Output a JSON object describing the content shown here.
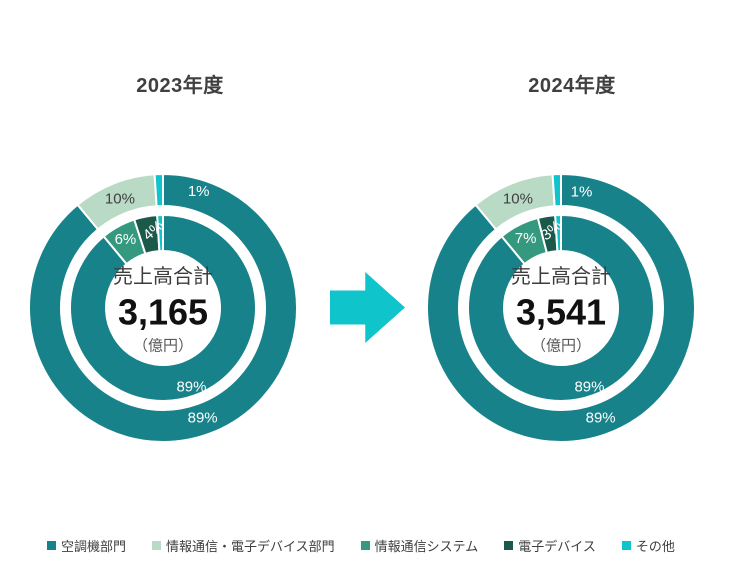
{
  "background": "#ffffff",
  "palette": {
    "teal": "#17828A",
    "light_green": "#B9DAC4",
    "sea_green": "#34997E",
    "dark_green": "#1B5A4B",
    "cyan": "#10C4CC",
    "title_text": "#404040",
    "center_label_text": "#3D3D3D",
    "center_value_text": "#111111",
    "center_unit_text": "#595959",
    "label_on_dark": "#FFFFFF",
    "label_on_light": "#404040"
  },
  "arrow": {
    "icon": "right-arrow",
    "color": "#10C4CC"
  },
  "legend": {
    "items": [
      {
        "label": "空調機部門",
        "color": "#17828A"
      },
      {
        "label": "情報通信・電子デバイス部門",
        "color": "#B9DAC4"
      },
      {
        "label": "情報通信システム",
        "color": "#34997E"
      },
      {
        "label": "電子デバイス",
        "color": "#1B5A4B"
      },
      {
        "label": "その他",
        "color": "#10C4CC"
      }
    ]
  },
  "chart_data": [
    {
      "type": "pie",
      "variant": "nested-donut",
      "title": "2023年度",
      "legend_position": "bottom-shared",
      "center": {
        "label": "売上高合計",
        "value": "3,165",
        "unit": "（億円）"
      },
      "rings": [
        {
          "id": "outer",
          "segments": [
            {
              "name": "空調機部門",
              "pct": 89,
              "color": "#17828A",
              "label": "89%",
              "label_color": "#FFFFFF"
            },
            {
              "name": "情報通信・電子デバイス部門",
              "pct": 10,
              "color": "#B9DAC4",
              "label": "10%",
              "label_color": "#404040"
            },
            {
              "name": "その他",
              "pct": 1,
              "color": "#10C4CC",
              "label": "1%",
              "label_color": "#FFFFFF",
              "label_angle": 17,
              "label_r": 122
            }
          ]
        },
        {
          "id": "inner",
          "segments": [
            {
              "name": "空調機部門",
              "pct": 89,
              "color": "#17828A",
              "label": "89%",
              "label_color": "#FFFFFF"
            },
            {
              "name": "情報通信システム",
              "pct": 6,
              "color": "#34997E",
              "label": "6%",
              "label_color": "#FFFFFF",
              "label_r": 78
            },
            {
              "name": "電子デバイス",
              "pct": 4,
              "color": "#1B5A4B",
              "label": "4%",
              "label_color": "#FFFFFF",
              "label_angle": 353,
              "label_r": 78,
              "label_rotate": -40
            },
            {
              "name": "その他",
              "pct": 1,
              "color": "#10C4CC",
              "label": ""
            }
          ]
        }
      ]
    },
    {
      "type": "pie",
      "variant": "nested-donut",
      "title": "2024年度",
      "legend_position": "bottom-shared",
      "center": {
        "label": "売上高合計",
        "value": "3,541",
        "unit": "（億円）"
      },
      "rings": [
        {
          "id": "outer",
          "segments": [
            {
              "name": "空調機部門",
              "pct": 89,
              "color": "#17828A",
              "label": "89%",
              "label_color": "#FFFFFF"
            },
            {
              "name": "情報通信・電子デバイス部門",
              "pct": 10,
              "color": "#B9DAC4",
              "label": "10%",
              "label_color": "#404040"
            },
            {
              "name": "その他",
              "pct": 1,
              "color": "#10C4CC",
              "label": "1%",
              "label_color": "#FFFFFF",
              "label_angle": 10,
              "label_r": 118
            }
          ]
        },
        {
          "id": "inner",
          "segments": [
            {
              "name": "空調機部門",
              "pct": 89,
              "color": "#17828A",
              "label": "89%",
              "label_color": "#FFFFFF"
            },
            {
              "name": "情報通信システム",
              "pct": 7,
              "color": "#34997E",
              "label": "7%",
              "label_color": "#FFFFFF",
              "label_r": 78
            },
            {
              "name": "電子デバイス",
              "pct": 3,
              "color": "#1B5A4B",
              "label": "3%",
              "label_color": "#FFFFFF",
              "label_angle": 353,
              "label_r": 78,
              "label_rotate": -40
            },
            {
              "name": "その他",
              "pct": 1,
              "color": "#10C4CC",
              "label": ""
            }
          ]
        }
      ]
    }
  ]
}
